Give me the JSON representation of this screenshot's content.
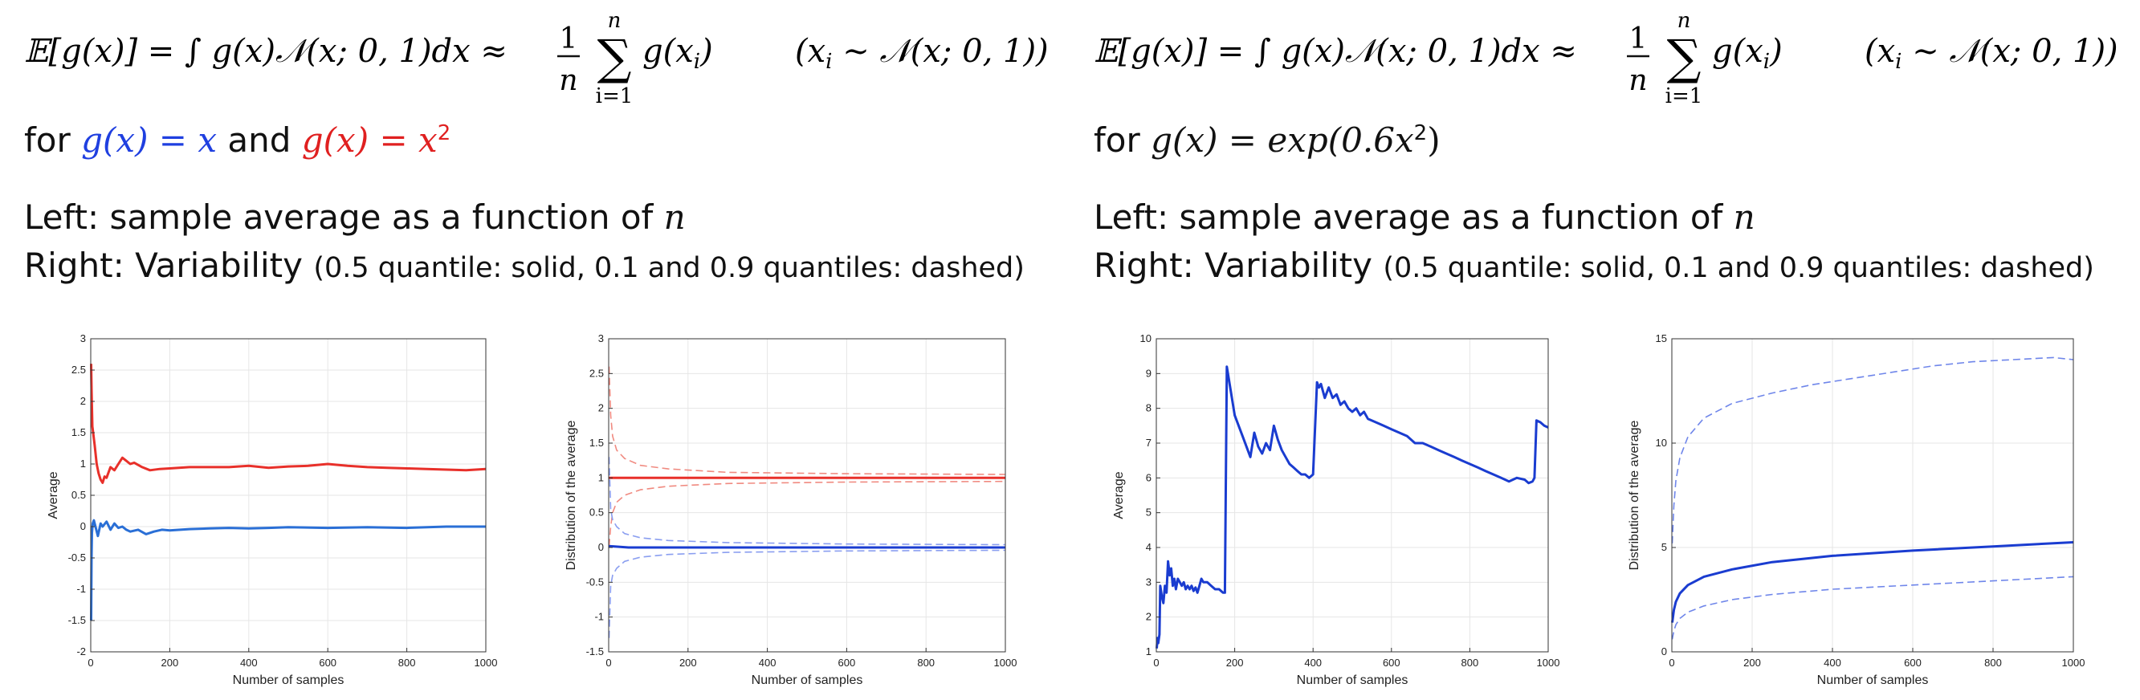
{
  "formula": {
    "lhs": "𝔼[g(x)] = ∫ g(x)𝒩(x; 0, 1)dx ≈",
    "frac_num": "1",
    "frac_den": "n",
    "sum_top": "n",
    "sum_sym": "∑",
    "sum_bottom": "i=1",
    "sum_term": "g(x",
    "sum_term_sub": "i",
    "sum_term_end": ")",
    "cond_open": "(x",
    "cond_sub": "i",
    "cond_rest": " ∼ 𝒩(x; 0, 1))"
  },
  "left_panel": {
    "for_prefix": "for ",
    "g_blue": "g(x) = x",
    "and_text": " and ",
    "g_red_base": "g(x) = x",
    "g_red_exp": "2",
    "line2_prefix": "Left:  sample average as a function of ",
    "line2_var": "n",
    "line3_prefix": "Right:  Variability ",
    "line3_small": "(0.5 quantile: solid, 0.1 and 0.9 quantiles: dashed)"
  },
  "right_panel": {
    "for_prefix": "for ",
    "g_text": "g(x) = exp(0.6x",
    "g_exp": "2",
    "g_end": ")",
    "line2_prefix": "Left:  sample average as a function of ",
    "line2_var": "n",
    "line3_prefix": "Right:  Variability ",
    "line3_small": "(0.5 quantile: solid, 0.1 and 0.9 quantiles: dashed)"
  },
  "chart_data": [
    {
      "type": "line",
      "xlabel": "Number of samples",
      "ylabel": "Average",
      "xlim": [
        0,
        1000
      ],
      "ylim": [
        -2,
        3
      ],
      "xticks": [
        0,
        200,
        400,
        600,
        800,
        1000
      ],
      "yticks": [
        -2,
        -1.5,
        -1,
        -0.5,
        0,
        0.5,
        1,
        1.5,
        2,
        2.5,
        3
      ],
      "grid": true,
      "series": [
        {
          "color": "#e8302a",
          "style": "solid",
          "x": [
            1,
            2,
            4,
            6,
            10,
            15,
            20,
            25,
            30,
            35,
            40,
            50,
            60,
            70,
            80,
            90,
            100,
            110,
            130,
            150,
            175,
            200,
            250,
            300,
            350,
            400,
            450,
            500,
            550,
            600,
            650,
            700,
            750,
            800,
            850,
            900,
            950,
            1000
          ],
          "y": [
            2.6,
            2.2,
            1.6,
            1.5,
            1.3,
            1.0,
            0.85,
            0.75,
            0.7,
            0.8,
            0.78,
            0.95,
            0.9,
            1.0,
            1.1,
            1.05,
            1.0,
            1.02,
            0.95,
            0.9,
            0.92,
            0.93,
            0.95,
            0.95,
            0.95,
            0.97,
            0.94,
            0.96,
            0.97,
            1.0,
            0.97,
            0.95,
            0.94,
            0.93,
            0.92,
            0.91,
            0.9,
            0.92
          ]
        },
        {
          "color": "#2a6fd6",
          "style": "solid",
          "x": [
            1,
            2,
            3,
            5,
            8,
            12,
            18,
            25,
            30,
            40,
            50,
            60,
            70,
            80,
            90,
            100,
            120,
            140,
            160,
            180,
            200,
            250,
            300,
            350,
            400,
            450,
            500,
            600,
            700,
            800,
            900,
            1000
          ],
          "y": [
            -1.5,
            -0.5,
            -0.1,
            0.05,
            0.1,
            0.0,
            -0.15,
            0.05,
            0.0,
            0.08,
            -0.05,
            0.05,
            -0.02,
            0.0,
            -0.05,
            -0.08,
            -0.05,
            -0.12,
            -0.08,
            -0.05,
            -0.06,
            -0.04,
            -0.03,
            -0.02,
            -0.03,
            -0.02,
            -0.01,
            -0.02,
            -0.01,
            -0.02,
            0.0,
            0.0
          ]
        }
      ]
    },
    {
      "type": "line",
      "xlabel": "Number of samples",
      "ylabel": "Distribution of the average",
      "xlim": [
        0,
        1000
      ],
      "ylim": [
        -1.5,
        3
      ],
      "xticks": [
        0,
        200,
        400,
        600,
        800,
        1000
      ],
      "yticks": [
        -1.5,
        -1,
        -0.5,
        0,
        0.5,
        1,
        1.5,
        2,
        2.5,
        3
      ],
      "grid": true,
      "series": [
        {
          "color": "#e8302a",
          "style": "solid",
          "x": [
            1,
            1000
          ],
          "y": [
            1.0,
            1.0
          ]
        },
        {
          "color": "#f08a80",
          "style": "dashed",
          "x": [
            1,
            5,
            10,
            20,
            40,
            80,
            150,
            300,
            600,
            1000
          ],
          "y": [
            2.6,
            1.9,
            1.6,
            1.4,
            1.28,
            1.18,
            1.13,
            1.08,
            1.06,
            1.05
          ]
        },
        {
          "color": "#f08a80",
          "style": "dashed",
          "x": [
            1,
            5,
            10,
            20,
            40,
            80,
            150,
            300,
            600,
            1000
          ],
          "y": [
            0.02,
            0.3,
            0.5,
            0.65,
            0.75,
            0.83,
            0.88,
            0.92,
            0.94,
            0.95
          ]
        },
        {
          "color": "#1a3cd0",
          "style": "solid",
          "x": [
            1,
            50,
            1000
          ],
          "y": [
            0.02,
            0.0,
            0.0
          ]
        },
        {
          "color": "#8a9ef0",
          "style": "dashed",
          "x": [
            1,
            5,
            10,
            20,
            40,
            80,
            150,
            300,
            600,
            1000
          ],
          "y": [
            1.3,
            0.55,
            0.4,
            0.3,
            0.2,
            0.14,
            0.1,
            0.07,
            0.05,
            0.04
          ]
        },
        {
          "color": "#8a9ef0",
          "style": "dashed",
          "x": [
            1,
            5,
            10,
            20,
            40,
            80,
            150,
            300,
            600,
            1000
          ],
          "y": [
            -1.3,
            -0.55,
            -0.4,
            -0.3,
            -0.2,
            -0.14,
            -0.1,
            -0.07,
            -0.05,
            -0.04
          ]
        }
      ]
    },
    {
      "type": "line",
      "xlabel": "Number of samples",
      "ylabel": "Average",
      "xlim": [
        0,
        1000
      ],
      "ylim": [
        1,
        10
      ],
      "xticks": [
        0,
        200,
        400,
        600,
        800,
        1000
      ],
      "yticks": [
        1,
        2,
        3,
        4,
        5,
        6,
        7,
        8,
        9,
        10
      ],
      "grid": true,
      "series": [
        {
          "color": "#1a3cd0",
          "style": "solid",
          "x": [
            1,
            3,
            5,
            8,
            10,
            14,
            18,
            22,
            26,
            30,
            34,
            38,
            42,
            46,
            50,
            55,
            60,
            65,
            70,
            75,
            80,
            85,
            90,
            95,
            100,
            105,
            110,
            115,
            120,
            130,
            140,
            150,
            160,
            170,
            175,
            180,
            190,
            200,
            220,
            240,
            250,
            260,
            270,
            280,
            290,
            300,
            310,
            320,
            330,
            340,
            350,
            360,
            370,
            380,
            390,
            400,
            410,
            415,
            420,
            430,
            440,
            450,
            460,
            470,
            480,
            490,
            500,
            510,
            520,
            530,
            540,
            560,
            580,
            600,
            620,
            640,
            660,
            680,
            700,
            720,
            740,
            760,
            780,
            800,
            820,
            840,
            860,
            880,
            900,
            920,
            940,
            950,
            960,
            965,
            970,
            980,
            990,
            1000
          ],
          "y": [
            1.1,
            1.4,
            1.25,
            1.5,
            2.9,
            2.6,
            2.4,
            2.9,
            2.7,
            3.6,
            3.2,
            3.4,
            2.9,
            3.1,
            2.8,
            3.1,
            3.0,
            2.9,
            3.0,
            2.8,
            2.9,
            2.8,
            2.9,
            2.75,
            2.85,
            2.7,
            2.9,
            3.1,
            3.0,
            3.0,
            2.9,
            2.8,
            2.8,
            2.7,
            2.7,
            9.2,
            8.5,
            7.8,
            7.2,
            6.6,
            7.3,
            6.9,
            6.7,
            7.0,
            6.8,
            7.5,
            7.1,
            6.8,
            6.6,
            6.4,
            6.3,
            6.2,
            6.1,
            6.1,
            6.0,
            6.1,
            8.75,
            8.6,
            8.7,
            8.3,
            8.6,
            8.3,
            8.4,
            8.1,
            8.2,
            8.0,
            7.9,
            8.0,
            7.8,
            7.9,
            7.7,
            7.6,
            7.5,
            7.4,
            7.3,
            7.2,
            7.0,
            7.0,
            6.9,
            6.8,
            6.7,
            6.6,
            6.5,
            6.4,
            6.3,
            6.2,
            6.1,
            6.0,
            5.9,
            6.0,
            5.95,
            5.85,
            5.9,
            6.0,
            7.65,
            7.6,
            7.5,
            7.45
          ]
        }
      ]
    },
    {
      "type": "line",
      "xlabel": "Number of samples",
      "ylabel": "Distribution of the average",
      "xlim": [
        0,
        1000
      ],
      "ylim": [
        0,
        15
      ],
      "xticks": [
        0,
        200,
        400,
        600,
        800,
        1000
      ],
      "yticks": [
        0,
        5,
        10,
        15
      ],
      "grid": true,
      "series": [
        {
          "color": "#1a3cd0",
          "style": "solid",
          "x": [
            1,
            5,
            10,
            20,
            40,
            80,
            150,
            250,
            400,
            600,
            800,
            1000
          ],
          "y": [
            1.4,
            2.0,
            2.4,
            2.8,
            3.2,
            3.6,
            3.95,
            4.3,
            4.6,
            4.85,
            5.05,
            5.25
          ]
        },
        {
          "color": "#6f86ea",
          "style": "dashed",
          "x": [
            1,
            5,
            10,
            20,
            40,
            80,
            150,
            250,
            350,
            450,
            550,
            650,
            750,
            850,
            950,
            1000
          ],
          "y": [
            5.2,
            7.0,
            8.2,
            9.3,
            10.3,
            11.2,
            11.9,
            12.4,
            12.8,
            13.1,
            13.4,
            13.7,
            13.9,
            14.0,
            14.1,
            14.0
          ]
        },
        {
          "color": "#6f86ea",
          "style": "dashed",
          "x": [
            1,
            5,
            10,
            20,
            40,
            80,
            150,
            250,
            400,
            600,
            800,
            1000
          ],
          "y": [
            0.6,
            1.0,
            1.3,
            1.6,
            1.9,
            2.2,
            2.5,
            2.75,
            3.0,
            3.2,
            3.4,
            3.6
          ]
        }
      ]
    }
  ]
}
